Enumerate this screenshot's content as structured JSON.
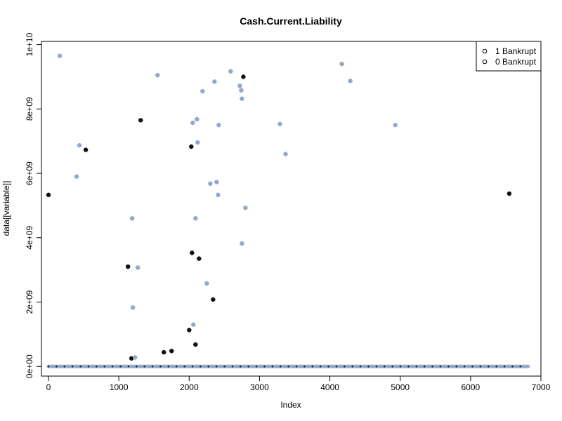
{
  "chart_data": {
    "type": "scatter",
    "title": "Cash.Current.Liability",
    "xlabel": "Index",
    "ylabel": "data[[variable]]",
    "xlim": [
      -100,
      7000
    ],
    "ylim": [
      -300000000.0,
      10100000000.0
    ],
    "x_ticks": [
      0,
      1000,
      2000,
      3000,
      4000,
      5000,
      6000,
      7000
    ],
    "x_tick_labels": [
      "0",
      "1000",
      "2000",
      "3000",
      "4000",
      "5000",
      "6000",
      "7000"
    ],
    "y_ticks": [
      0,
      2000000000.0,
      4000000000.0,
      6000000000.0,
      8000000000.0,
      10000000000.0
    ],
    "y_tick_labels": [
      "0e+00",
      "2e+09",
      "4e+09",
      "6e+09",
      "8e+09",
      "1e+10"
    ],
    "legend": {
      "position": "top-right",
      "entries": [
        {
          "label": "1 Bankrupt",
          "marker": "o"
        },
        {
          "label": "0 Bankrupt",
          "marker": "o"
        }
      ]
    },
    "colors": {
      "bankrupt_1": "#111111",
      "bankrupt_0": "#94a8cc"
    },
    "baseline": {
      "x_start": 0,
      "x_end": 6819,
      "y": 0
    },
    "series": [
      {
        "key": "bankrupt_1",
        "points": [
          [
            0,
            5330000000.0
          ],
          [
            530,
            6730000000.0
          ],
          [
            1130,
            3100000000.0
          ],
          [
            1180,
            250000000.0
          ],
          [
            1310,
            7650000000.0
          ],
          [
            1640,
            440000000.0
          ],
          [
            1750,
            480000000.0
          ],
          [
            2000,
            1130000000.0
          ],
          [
            2030,
            6830000000.0
          ],
          [
            2040,
            3530000000.0
          ],
          [
            2090,
            680000000.0
          ],
          [
            2140,
            3350000000.0
          ],
          [
            2340,
            2080000000.0
          ],
          [
            2770,
            9000000000.0
          ],
          [
            6550,
            5370000000.0
          ]
        ]
      },
      {
        "key": "bankrupt_0",
        "points": [
          [
            160,
            9650000000.0
          ],
          [
            400,
            5900000000.0
          ],
          [
            440,
            6870000000.0
          ],
          [
            1190,
            4600000000.0
          ],
          [
            1200,
            1830000000.0
          ],
          [
            1230,
            280000000.0
          ],
          [
            1270,
            3070000000.0
          ],
          [
            1550,
            9050000000.0
          ],
          [
            2050,
            7570000000.0
          ],
          [
            2060,
            1300000000.0
          ],
          [
            2090,
            4600000000.0
          ],
          [
            2110,
            7680000000.0
          ],
          [
            2120,
            6960000000.0
          ],
          [
            2190,
            8550000000.0
          ],
          [
            2250,
            2580000000.0
          ],
          [
            2300,
            5680000000.0
          ],
          [
            2360,
            8850000000.0
          ],
          [
            2390,
            5730000000.0
          ],
          [
            2410,
            5330000000.0
          ],
          [
            2420,
            7500000000.0
          ],
          [
            2590,
            9170000000.0
          ],
          [
            2720,
            8720000000.0
          ],
          [
            2740,
            8580000000.0
          ],
          [
            2750,
            8320000000.0
          ],
          [
            2750,
            3820000000.0
          ],
          [
            2800,
            4930000000.0
          ],
          [
            3290,
            7530000000.0
          ],
          [
            3370,
            6600000000.0
          ],
          [
            4170,
            9400000000.0
          ],
          [
            4290,
            8870000000.0
          ],
          [
            4930,
            7500000000.0
          ]
        ]
      }
    ]
  }
}
